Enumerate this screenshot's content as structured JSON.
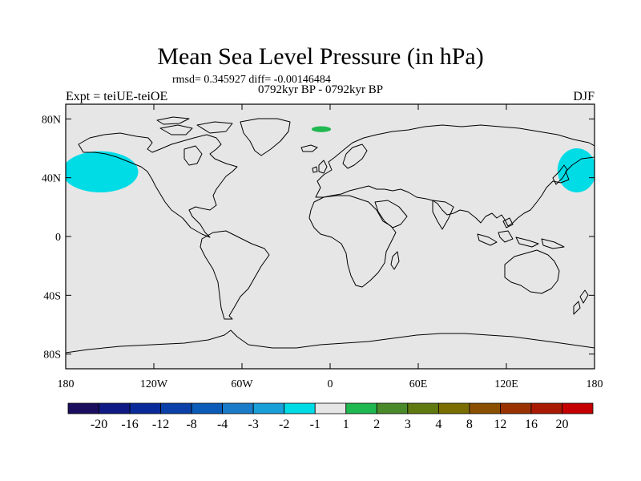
{
  "title": "Mean Sea Level Pressure (in hPa)",
  "stats_line": "rmsd= 0.345927 diff= -0.00146484",
  "left_label": "Expt = teiUE-teiOE",
  "center_label": "0792kyr BP - 0792kyr BP",
  "right_label": "DJF",
  "lat_labels": [
    "80N",
    "40N",
    "0",
    "40S",
    "80S"
  ],
  "lat_values": [
    80,
    40,
    0,
    -40,
    -80
  ],
  "lon_labels": [
    "180",
    "120W",
    "60W",
    "0",
    "60E",
    "120E",
    "180"
  ],
  "lon_values": [
    -180,
    -120,
    -60,
    0,
    60,
    120,
    180
  ],
  "map_extent": {
    "lon": [
      -180,
      180
    ],
    "lat": [
      -90,
      90
    ]
  },
  "anomalies": [
    {
      "name": "north-pacific-east-low",
      "value_range": [
        -2,
        -1
      ],
      "color": "#00dce6",
      "lon": [
        -180,
        -133
      ],
      "lat": [
        30,
        58
      ]
    },
    {
      "name": "north-pacific-west-low",
      "value_range": [
        -2,
        -1
      ],
      "color": "#00dce6",
      "lon": [
        156,
        180
      ],
      "lat": [
        30,
        60
      ]
    },
    {
      "name": "greenland-sea-high",
      "value_range": [
        1,
        2
      ],
      "color": "#20b850",
      "lon": [
        -12,
        0
      ],
      "lat": [
        71,
        75
      ]
    }
  ],
  "colorbar": {
    "colors": [
      "#1a0d5e",
      "#101a84",
      "#0a2a9a",
      "#0a40a8",
      "#0a5cb8",
      "#1a7cc8",
      "#1aa0d8",
      "#00dce6",
      "#e6e6e6",
      "#20b850",
      "#4a8a2a",
      "#607a10",
      "#7a6e00",
      "#8a5000",
      "#9a3200",
      "#aa1a00",
      "#c40000"
    ],
    "labels": [
      "-20",
      "-16",
      "-12",
      "-8",
      "-4",
      "-3",
      "-2",
      "-1",
      "1",
      "2",
      "3",
      "4",
      "8",
      "12",
      "16",
      "20"
    ]
  },
  "colors": {
    "ocean": "#e6e6e6",
    "coast": "#000000"
  }
}
